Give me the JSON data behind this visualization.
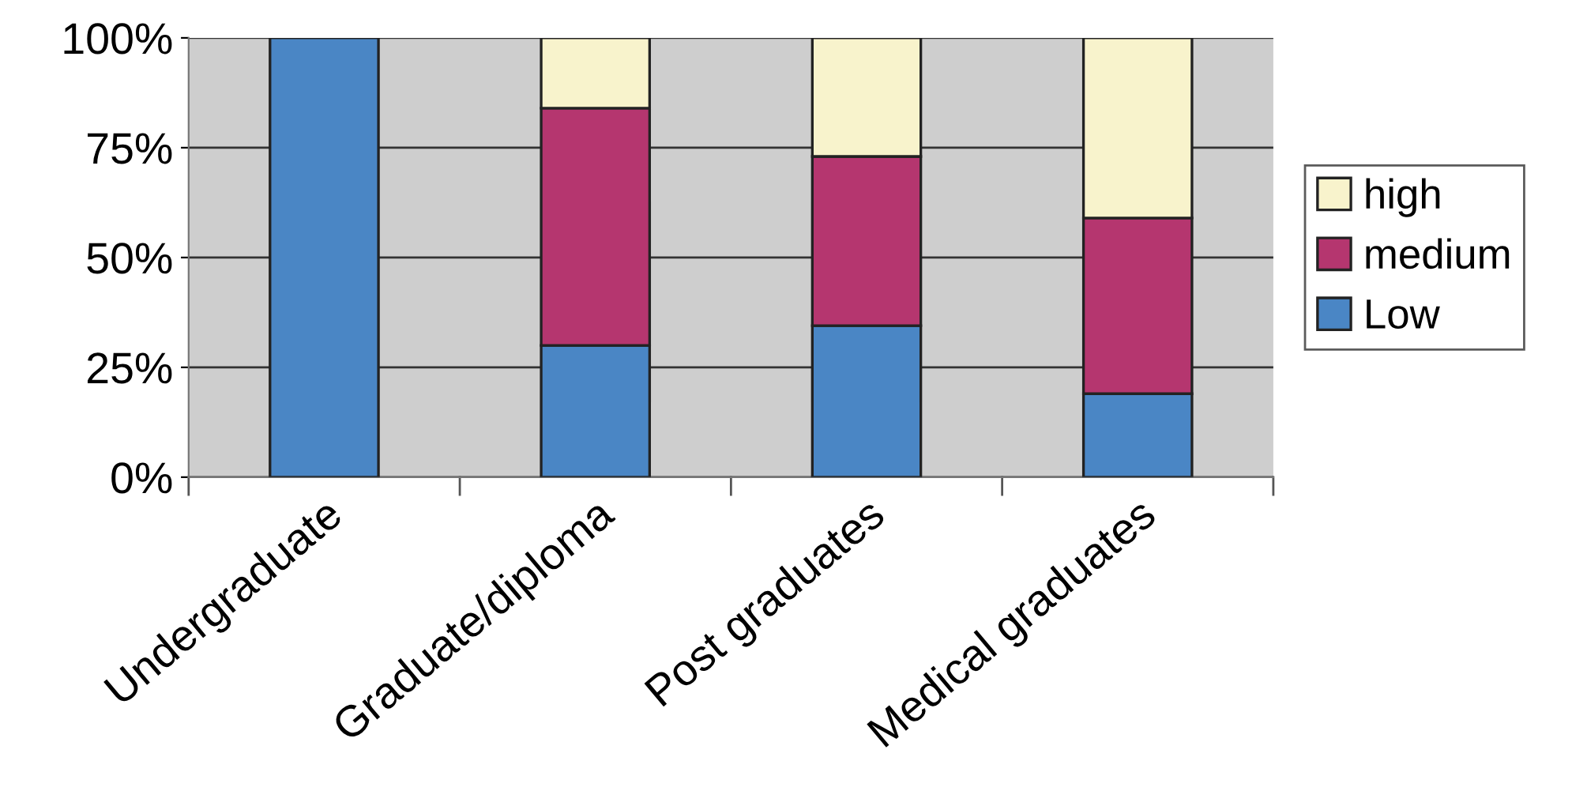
{
  "chart_data": {
    "type": "bar",
    "stacked": true,
    "categories": [
      "Undergraduate",
      "Graduate/diploma",
      "Post graduates",
      "Medical graduates"
    ],
    "series": [
      {
        "name": "Low",
        "color": "#4a86c5",
        "values": [
          100,
          30,
          34.5,
          19
        ]
      },
      {
        "name": "medium",
        "color": "#b5366f",
        "values": [
          null,
          54,
          38.5,
          40
        ]
      },
      {
        "name": "high",
        "color": "#f8f3cc",
        "values": [
          null,
          16,
          27,
          41
        ]
      }
    ],
    "ylim": [
      0,
      100
    ],
    "yticks": [
      {
        "value": 0,
        "label": "0%"
      },
      {
        "value": 25,
        "label": "25%"
      },
      {
        "value": 50,
        "label": "50%"
      },
      {
        "value": 75,
        "label": "75%"
      },
      {
        "value": 100,
        "label": "100%"
      }
    ],
    "grid": "y",
    "legend": "right"
  }
}
